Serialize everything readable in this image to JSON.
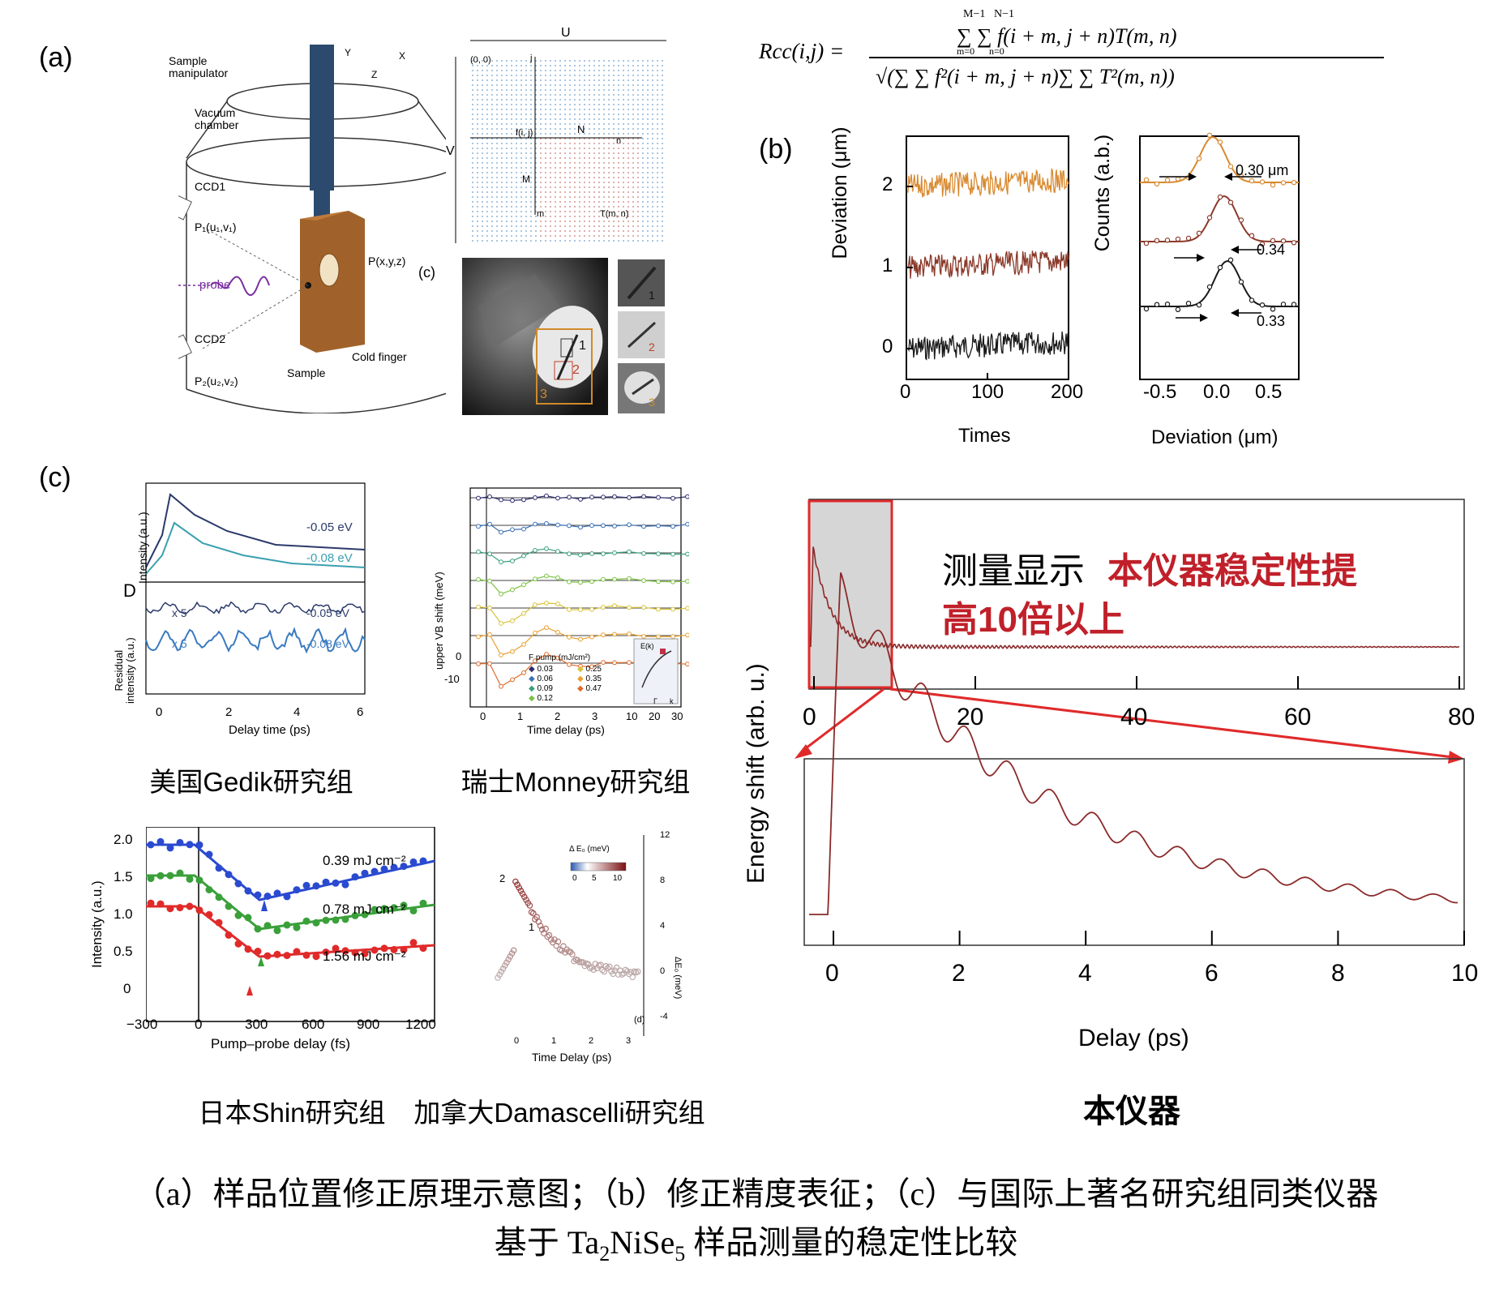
{
  "panel_labels": {
    "a": "(a)",
    "b": "(b)",
    "c": "(c)",
    "c_small": "(c)"
  },
  "schematic": {
    "sample_manipulator": "Sample\nmanipulator",
    "vacuum_chamber": "Vacuum\nchamber",
    "ccd1": "CCD1",
    "p1": "P₁(u₁,v₁)",
    "probe": "probe",
    "p_xyz": "P(x,y,z)",
    "ccd2": "CCD2",
    "p2": "P₂(u₂,v₂)",
    "sample": "Sample",
    "cold_finger": "Cold finger",
    "axes": {
      "y": "Y",
      "x": "X",
      "z": "Z"
    }
  },
  "grid_diagram": {
    "u": "U",
    "v": "V",
    "origin": "(0, 0)",
    "i": "i",
    "j": "j",
    "f": "f(i, j)",
    "n_label": "N",
    "n": "n",
    "m_label": "M",
    "m": "m",
    "t": "T(m, n)"
  },
  "photo": {
    "labels": [
      "1",
      "2",
      "3"
    ],
    "inset_labels": [
      "1",
      "2",
      "3"
    ]
  },
  "formula": {
    "lhs": "Rcc(i,j) =",
    "numerator": "∑ ∑ f(i + m, j + n)T(m, n)",
    "denominator": "√(∑ ∑ f²(i + m, j + n)∑ ∑ T²(m, n))",
    "sup_m": "M−1",
    "sup_n": "N−1",
    "sub_m": "m=0",
    "sub_n": "n=0"
  },
  "panel_b": {
    "left": {
      "ylabel": "Deviation (μm)",
      "xlabel": "Times",
      "yticks": [
        "0",
        "1",
        "2"
      ],
      "xticks": [
        "0",
        "100",
        "200"
      ],
      "series_colors": [
        "#1a1a1a",
        "#8b3a2a",
        "#d98a30"
      ]
    },
    "right": {
      "ylabel": "Counts (a.b.)",
      "xlabel": "Deviation (μm)",
      "xticks": [
        "-0.5",
        "0.0",
        "0.5"
      ],
      "fwhm": [
        "0.30 μm",
        "0.34",
        "0.33"
      ]
    }
  },
  "gedik": {
    "ylabel_top": "Intensity (a.u.)",
    "ylabel_bottom": "Residual\nintensity (a.u.)",
    "panel_letter": "D",
    "xlabel": "Delay time (ps)",
    "xticks": [
      "0",
      "2",
      "4",
      "6"
    ],
    "e1": "-0.05 eV",
    "e2": "-0.08 eV",
    "x5a": "x 5",
    "x5b": "x 5",
    "group": "美国Gedik研究组"
  },
  "monney": {
    "ylabel": "upper VB shift (meV)",
    "xlabel": "Time delay (ps)",
    "yticks": [
      "0",
      "-10"
    ],
    "xticks": [
      "0",
      "1",
      "2",
      "3",
      "10",
      "20",
      "30"
    ],
    "legend_title": "F pump (mJ/cm²)",
    "legend": [
      "0.03",
      "0.06",
      "0.09",
      "0.12",
      "0.25",
      "0.35",
      "0.47"
    ],
    "legend_colors": [
      "#2b2a6b",
      "#3a6fb5",
      "#3aa07a",
      "#7cc242",
      "#d8c23a",
      "#e8a030",
      "#e06a2a"
    ],
    "inset_e": "E(k)",
    "inset_g": "Γ",
    "inset_k": "k",
    "group": "瑞士Monney研究组"
  },
  "shin": {
    "ylabel": "Intensity (a.u.)",
    "xlabel": "Pump–probe delay (fs)",
    "yticks": [
      "0",
      "0.5",
      "1.0",
      "1.5",
      "2.0"
    ],
    "xticks": [
      "−300",
      "0",
      "300",
      "600",
      "900",
      "1200"
    ],
    "f1": "0.39 mJ cm⁻²",
    "f2": "0.78 mJ cm⁻²",
    "f3": "1.56 mJ cm⁻²",
    "group": "日本Shin研究组"
  },
  "damascelli": {
    "legend_title": "Δ E₀ (meV)",
    "legend_ticks": [
      "0",
      "5",
      "10"
    ],
    "ylabel": "ΔE₀ (meV)",
    "yticks": [
      "12",
      "8",
      "4",
      "0",
      "-4"
    ],
    "xlabel": "Time Delay (ps)",
    "xticks": [
      "0",
      "1",
      "2",
      "3"
    ],
    "n1": "1",
    "n2": "2",
    "letter": "(d)",
    "group": "加拿大Damascelli研究组"
  },
  "ours": {
    "ylabel": "Energy shift (arb. u.)",
    "xlabel": "Delay (ps)",
    "top_xticks": [
      "0",
      "20",
      "40",
      "60",
      "80"
    ],
    "bottom_xticks": [
      "0",
      "2",
      "4",
      "6",
      "8",
      "10"
    ],
    "claim_black": "测量显示",
    "claim_red1": "本仪器稳定性提",
    "claim_red2": "高10倍以上",
    "group": "本仪器",
    "line_color": "#8b2a2a"
  },
  "caption": {
    "line1": "（a）样品位置修正原理示意图；（b）修正精度表征；（c）与国际上著名研究组同类仪器",
    "line2_pre": "基于 Ta",
    "sub2": "2",
    "line2_mid": "NiSe",
    "sub5": "5",
    "line2_post": " 样品测量的稳定性比较"
  }
}
